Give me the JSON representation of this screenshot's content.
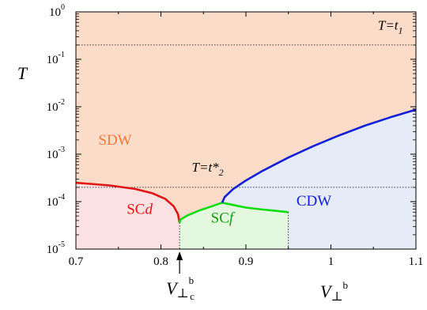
{
  "chart_data": {
    "type": "line",
    "xlabel": "V⊥b",
    "ylabel": "T",
    "xlim": [
      0.7,
      1.1
    ],
    "ylim": [
      1e-05,
      1
    ],
    "yscale": "log",
    "grid": false,
    "x_ticks": [
      0.7,
      0.8,
      0.9,
      1,
      1.1
    ],
    "x_tick_labels": [
      "0.7",
      "0.8",
      "0.9",
      "1",
      "1.1"
    ],
    "y_ticks": [
      1e-05,
      0.0001,
      0.001,
      0.01,
      0.1,
      1
    ],
    "y_tick_labels": [
      {
        "base": "10",
        "exp": "-5"
      },
      {
        "base": "10",
        "exp": "-4"
      },
      {
        "base": "10",
        "exp": "-3"
      },
      {
        "base": "10",
        "exp": "-2"
      },
      {
        "base": "10",
        "exp": "-1"
      },
      {
        "base": "10",
        "exp": "0"
      }
    ],
    "regions": [
      {
        "label": "SDW",
        "color": "#f07a3e",
        "fill": "#fbdcc8"
      },
      {
        "label_main": "SC",
        "label_italic": "d",
        "color": "#e01414",
        "fill": "#fbe1e1"
      },
      {
        "label_main": "SC",
        "label_italic": "f",
        "color": "#10a010",
        "fill": "#e4f7df"
      },
      {
        "label": "CDW",
        "color": "#1420d8",
        "fill": "#e5ecf8"
      }
    ],
    "series": [
      {
        "color": "#e01414",
        "points": [
          [
            0.7,
            0.00025
          ],
          [
            0.74,
            0.00022
          ],
          [
            0.77,
            0.000185
          ],
          [
            0.79,
            0.00015
          ],
          [
            0.805,
            0.000115
          ],
          [
            0.815,
            8e-05
          ],
          [
            0.82,
            5.5e-05
          ],
          [
            0.822,
            3.6e-05
          ]
        ]
      },
      {
        "color": "#10dd10",
        "points": [
          [
            0.822,
            3.6e-05
          ],
          [
            0.823,
            4.2e-05
          ],
          [
            0.83,
            5e-05
          ],
          [
            0.845,
            6.5e-05
          ],
          [
            0.86,
            8e-05
          ],
          [
            0.872,
            9.5e-05
          ],
          [
            0.885,
            8.5e-05
          ],
          [
            0.9,
            7.5e-05
          ],
          [
            0.92,
            6.8e-05
          ],
          [
            0.935,
            6.4e-05
          ],
          [
            0.95,
            6e-05
          ]
        ]
      },
      {
        "color": "#1420d8",
        "points": [
          [
            0.872,
            9.5e-05
          ],
          [
            0.875,
            0.000125
          ],
          [
            0.885,
            0.000185
          ],
          [
            0.9,
            0.00028
          ],
          [
            0.92,
            0.00045
          ],
          [
            0.95,
            0.00085
          ],
          [
            0.98,
            0.0015
          ],
          [
            1.01,
            0.0025
          ],
          [
            1.04,
            0.004
          ],
          [
            1.07,
            0.006
          ],
          [
            1.1,
            0.0087
          ]
        ]
      }
    ],
    "reference_lines": [
      {
        "y": 0.2,
        "label_main": "T=t",
        "label_sub": "1",
        "label_x": 1.07,
        "label_y": 0.42
      },
      {
        "y": 0.0002,
        "label_main": "T=t*",
        "label_sub": "2",
        "label_x": 0.855,
        "label_y": 0.00043
      }
    ],
    "vertical_lines": [
      0.822,
      0.95
    ],
    "marker": {
      "x": 0.822,
      "label_main": "V",
      "label_sup": "b",
      "label_sub": "c"
    }
  }
}
